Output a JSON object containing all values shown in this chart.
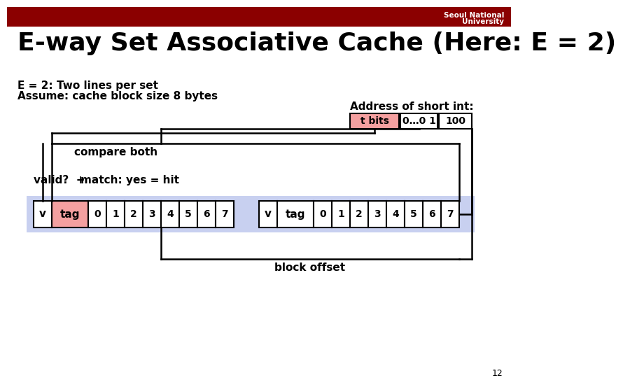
{
  "title": "E-way Set Associative Cache (Here: E = 2)",
  "subtitle1": "E = 2: Two lines per set",
  "subtitle2": "Assume: cache block size 8 bytes",
  "header_text": "Seoul National\nUniversity",
  "header_bg": "#8B0000",
  "bg_color": "#ffffff",
  "title_color": "#000000",
  "title_fontsize": 26,
  "subtitle_fontsize": 11,
  "compare_both_label": "compare both",
  "block_offset_label": "block offset",
  "valid_label": "valid?  +",
  "match_label": "match: yes = hit",
  "address_label": "Address of short int:",
  "addr_cells": [
    "t bits",
    "0…0 1",
    "100"
  ],
  "addr_cell_colors": [
    "#f4a0a0",
    "#ffffff",
    "#ffffff"
  ],
  "cache_nums": [
    "0",
    "1",
    "2",
    "3",
    "4",
    "5",
    "6",
    "7"
  ],
  "slide_number": "12",
  "light_blue_bg": "#c8d0f0",
  "cell_border": "#000000",
  "tag_fill1": "#f4a0a0",
  "tag_fill2": "#ffffff",
  "v_fill": "#ffffff",
  "line_color": "#000000",
  "line_lw": 1.8
}
